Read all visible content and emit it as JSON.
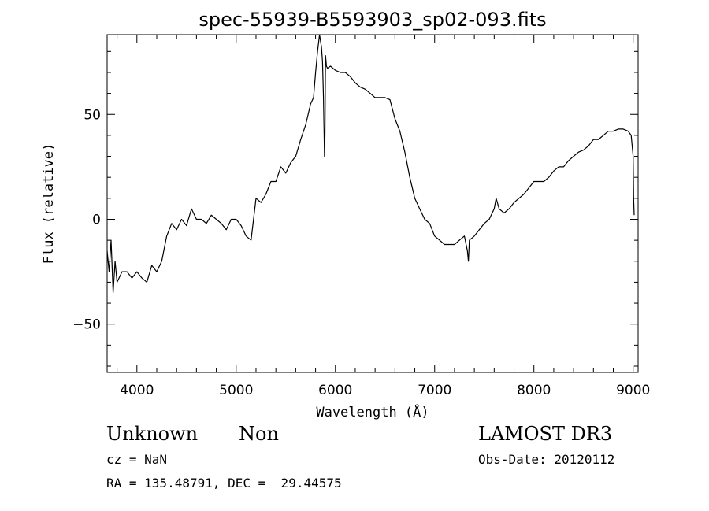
{
  "chart_data": {
    "type": "line",
    "title": "spec-55939-B5593903_sp02-093.fits",
    "xlabel": "Wavelength (Å)",
    "ylabel": "Flux (relative)",
    "xlim": [
      3700,
      9050
    ],
    "ylim": [
      -73,
      88
    ],
    "xticks": [
      4000,
      5000,
      6000,
      7000,
      8000,
      9000
    ],
    "xtick_labels": [
      "4000",
      "5000",
      "6000",
      "7000",
      "8000",
      "9000"
    ],
    "yticks": [
      -50,
      0,
      50
    ],
    "ytick_labels": [
      "−50",
      "0",
      "50"
    ],
    "grid": false,
    "legend": "none",
    "line_color": "#000000",
    "series": [
      {
        "x": [
          3700,
          3720,
          3740,
          3760,
          3780,
          3800,
          3850,
          3900,
          3950,
          4000,
          4050,
          4100,
          4150,
          4200,
          4250,
          4300,
          4350,
          4400,
          4450,
          4500,
          4550,
          4600,
          4650,
          4700,
          4750,
          4800,
          4850,
          4900,
          4950,
          5000,
          5050,
          5100,
          5150,
          5200,
          5250,
          5300,
          5350,
          5400,
          5450,
          5500,
          5550,
          5600,
          5650,
          5700,
          5750,
          5780,
          5800,
          5820,
          5840,
          5860,
          5870,
          5880,
          5890,
          5895,
          5900,
          5910,
          5920,
          5950,
          6000,
          6050,
          6100,
          6150,
          6200,
          6250,
          6300,
          6350,
          6400,
          6450,
          6500,
          6550,
          6600,
          6650,
          6700,
          6750,
          6800,
          6850,
          6900,
          6950,
          7000,
          7050,
          7100,
          7150,
          7200,
          7250,
          7300,
          7330,
          7340,
          7350,
          7400,
          7450,
          7500,
          7550,
          7600,
          7620,
          7650,
          7700,
          7750,
          7800,
          7850,
          7900,
          7950,
          8000,
          8050,
          8100,
          8150,
          8200,
          8250,
          8300,
          8350,
          8400,
          8450,
          8500,
          8550,
          8600,
          8650,
          8700,
          8750,
          8800,
          8850,
          8900,
          8950,
          8980,
          9000,
          9005,
          9010
        ],
        "values": [
          -15,
          -25,
          -10,
          -35,
          -20,
          -30,
          -25,
          -25,
          -28,
          -25,
          -28,
          -30,
          -22,
          -25,
          -20,
          -8,
          -2,
          -5,
          0,
          -3,
          5,
          0,
          0,
          -2,
          2,
          0,
          -2,
          -5,
          0,
          0,
          -3,
          -8,
          -10,
          10,
          8,
          12,
          18,
          18,
          25,
          22,
          27,
          30,
          38,
          45,
          55,
          58,
          70,
          80,
          88,
          82,
          75,
          58,
          30,
          40,
          78,
          73,
          72,
          73,
          71,
          70,
          70,
          68,
          65,
          63,
          62,
          60,
          58,
          58,
          58,
          57,
          48,
          42,
          32,
          20,
          10,
          5,
          0,
          -2,
          -8,
          -10,
          -12,
          -12,
          -12,
          -10,
          -8,
          -15,
          -20,
          -10,
          -8,
          -5,
          -2,
          0,
          5,
          10,
          5,
          3,
          5,
          8,
          10,
          12,
          15,
          18,
          18,
          18,
          20,
          23,
          25,
          25,
          28,
          30,
          32,
          33,
          35,
          38,
          38,
          40,
          42,
          42,
          43,
          43,
          42,
          40,
          30,
          10,
          2
        ]
      }
    ]
  },
  "footer": {
    "object_class": "Unknown",
    "object_subclass": "Non",
    "cz": "cz = NaN",
    "coords": "RA = 135.48791, DEC =  29.44575",
    "survey": "LAMOST DR3",
    "obs_date": "Obs-Date: 20120112"
  }
}
